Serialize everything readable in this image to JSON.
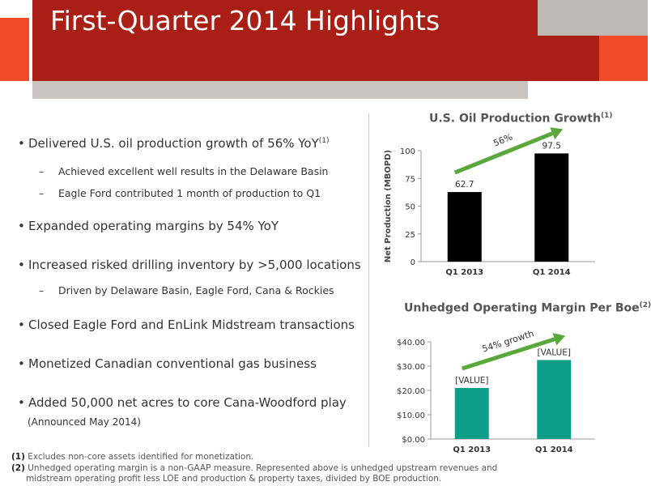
{
  "title": "First-Quarter 2014 Highlights",
  "bullets": [
    {
      "text": "Delivered U.S. oil production growth of 56% YoY",
      "sup": "(1)"
    },
    {
      "text": "Achieved excellent well results in the Delaware Basin",
      "sub": true
    },
    {
      "text": "Eagle Ford contributed 1 month of production to Q1",
      "sub": true
    },
    {
      "text": "Expanded operating margins by 54% YoY"
    },
    {
      "text": "Increased risked drilling inventory by >5,000 locations"
    },
    {
      "text": "Driven by Delaware Basin, Eagle Ford, Cana & Rockies",
      "sub": true
    },
    {
      "text": "Closed Eagle Ford and EnLink Midstream transactions"
    },
    {
      "text": "Monetized Canadian conventional gas business"
    },
    {
      "text": "Added 50,000 net acres to core Cana-Woodford play"
    }
  ],
  "announced_note": "(Announced May 2014)",
  "footnotes": [
    {
      "num": "(1)",
      "text": "Excludes non-core assets identified for monetization."
    },
    {
      "num": "(2)",
      "text": "Unhedged operating margin is a non-GAAP measure. Represented above is unhedged upstream revenues and"
    },
    {
      "num": "",
      "text": "midstream operating profit less LOE and production & property taxes, divided by BOE production."
    }
  ],
  "chart_data": [
    {
      "type": "bar",
      "title": "U.S. Oil Production Growth",
      "title_sup": "(1)",
      "ylabel": "Net Production (MBOPD)",
      "categories": [
        "Q1 2013",
        "Q1 2014"
      ],
      "values": [
        62.7,
        97.5
      ],
      "data_labels": [
        "62.7",
        "97.5"
      ],
      "yticks": [
        0,
        25,
        50,
        75,
        100
      ],
      "ytick_labels": [
        "0",
        "25",
        "50",
        "75",
        "100"
      ],
      "ylim": [
        0,
        100
      ],
      "bar_color": "#000000",
      "annotation": "56%",
      "grid": false
    },
    {
      "type": "bar",
      "title": "Unhedged Operating Margin Per Boe",
      "title_sup": "(2)",
      "ylabel": "",
      "categories": [
        "Q1 2013",
        "Q1 2014"
      ],
      "values": [
        21,
        32.5
      ],
      "data_labels": [
        "[VALUE]",
        "[VALUE]"
      ],
      "yticks": [
        0,
        10,
        20,
        30,
        40
      ],
      "ytick_labels": [
        "$0.00",
        "$10.00",
        "$20.00",
        "$30.00",
        "$40.00"
      ],
      "ylim": [
        0,
        40
      ],
      "bar_color": "#0d9e8a",
      "annotation": "54% growth",
      "grid": false
    }
  ],
  "colors": {
    "header_red": "#a91f16",
    "accent_orange": "#ee4b26",
    "header_gray": "#c9c4c0",
    "arrow_green": "#5aa83c"
  }
}
